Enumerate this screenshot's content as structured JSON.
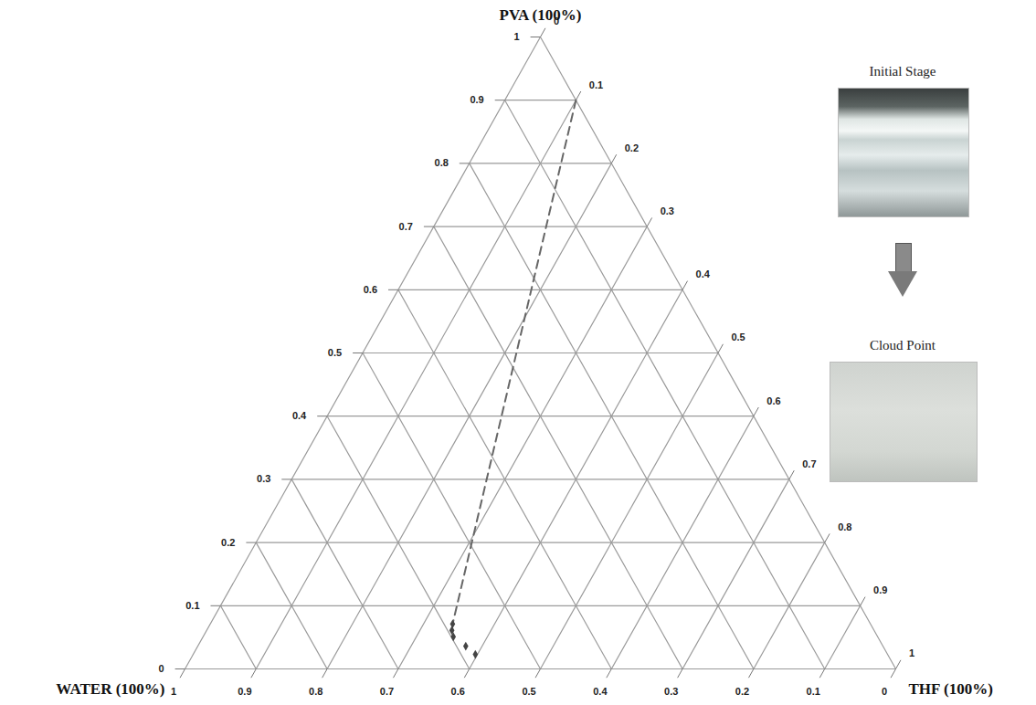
{
  "chart_data": {
    "type": "ternary",
    "grid": true,
    "axes": [
      {
        "label": "PVA (100%)",
        "lim": [
          0,
          1
        ],
        "ticks": [
          0,
          0.1,
          0.2,
          0.3,
          0.4,
          0.5,
          0.6,
          0.7,
          0.8,
          0.9,
          1
        ]
      },
      {
        "label": "WATER (100%)",
        "lim": [
          0,
          1
        ],
        "ticks": [
          0,
          0.1,
          0.2,
          0.3,
          0.4,
          0.5,
          0.6,
          0.7,
          0.8,
          0.9,
          1
        ]
      },
      {
        "label": "THF (100%)",
        "lim": [
          0,
          1
        ],
        "ticks": [
          0,
          0.1,
          0.2,
          0.3,
          0.4,
          0.5,
          0.6,
          0.7,
          0.8,
          0.9,
          1
        ]
      }
    ],
    "series": [
      {
        "type": "line",
        "line_style": "dashed",
        "color": "#666666",
        "values": [
          [
            0.9,
            0,
            0.1
          ],
          [
            0.071,
            0.588,
            0.341
          ]
        ]
      },
      {
        "type": "scatter",
        "marker": "diamond",
        "color": "#444444",
        "values": [
          [
            0.071,
            0.588,
            0.341
          ],
          [
            0.061,
            0.594,
            0.345
          ],
          [
            0.051,
            0.597,
            0.352
          ],
          [
            0.036,
            0.587,
            0.377
          ],
          [
            0.023,
            0.58,
            0.397
          ]
        ]
      }
    ]
  },
  "photos": [
    {
      "caption": "Initial Stage"
    },
    {
      "caption": "Cloud Point"
    }
  ]
}
